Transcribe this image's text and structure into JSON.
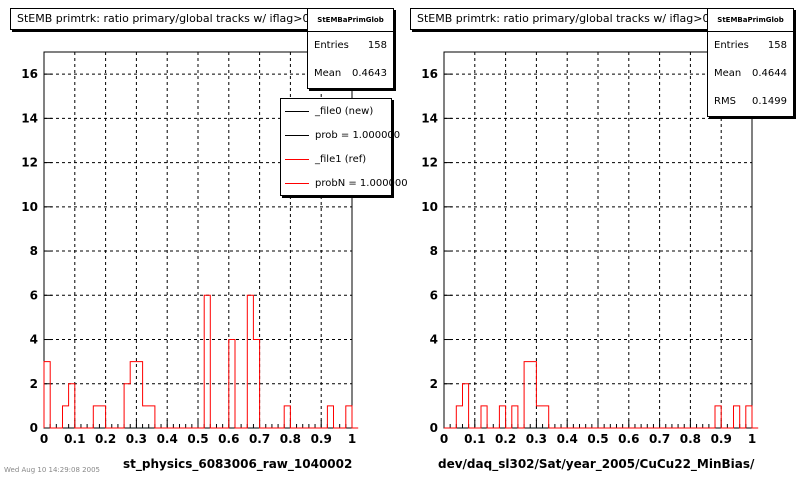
{
  "panels": [
    {
      "title": "StEMB primtrk: ratio primary/global tracks w/ iflag>0",
      "xlabel": "st_physics_6083006_raw_1040002",
      "stats": {
        "name": "StEMBaPrimGlob",
        "rows": [
          {
            "label": "Entries",
            "value": "158"
          },
          {
            "label": "Mean",
            "value": "0.4643"
          }
        ]
      },
      "legend": [
        {
          "label": "_file0 (new)",
          "color": "#000000"
        },
        {
          "label": "prob = 1.000000",
          "color": "#000000"
        },
        {
          "label": "_file1 (ref)",
          "color": "#ff0000"
        },
        {
          "label": "probN = 1.000000",
          "color": "#ff0000"
        }
      ]
    },
    {
      "title": "StEMB primtrk: ratio primary/global tracks w/ iflag>0",
      "xlabel": "dev/daq_sl302/Sat/year_2005/CuCu22_MinBias/",
      "stats": {
        "name": "StEMBaPrimGlob",
        "rows": [
          {
            "label": "Entries",
            "value": "158"
          },
          {
            "label": "Mean",
            "value": "0.4644"
          },
          {
            "label": "RMS",
            "value": "0.1499"
          }
        ]
      },
      "legend": []
    }
  ],
  "footer": "Wed Aug 10 14:29:08 2005",
  "chart_data": [
    {
      "type": "bar",
      "title": "StEMB primtrk: ratio primary/global tracks w/ iflag>0",
      "xlabel": "st_physics_6083006_raw_1040002",
      "ylabel": "",
      "xlim": [
        0,
        1
      ],
      "ylim": [
        0,
        17
      ],
      "xticks": [
        "0",
        "0.1",
        "0.2",
        "0.3",
        "0.4",
        "0.5",
        "0.6",
        "0.7",
        "0.8",
        "0.9",
        "1"
      ],
      "yticks": [
        "0",
        "2",
        "4",
        "6",
        "8",
        "10",
        "12",
        "14",
        "16"
      ],
      "grid": true,
      "bin_width": 0.02,
      "bin_start": 0,
      "series": [
        {
          "name": "_file1 (ref)",
          "color": "#ff0000",
          "values": [
            3,
            0,
            0,
            1,
            2,
            0,
            0,
            0,
            1,
            1,
            0,
            0,
            0,
            2,
            3,
            3,
            1,
            1,
            0,
            0,
            0,
            0,
            0,
            0,
            0,
            0,
            6,
            0,
            0,
            0,
            4,
            0,
            0,
            6,
            4,
            0,
            0,
            0,
            0,
            1,
            0,
            0,
            0,
            0,
            0,
            0,
            1,
            0,
            0,
            1,
            0
          ]
        }
      ]
    },
    {
      "type": "bar",
      "title": "StEMB primtrk: ratio primary/global tracks w/ iflag>0",
      "xlabel": "dev/daq_sl302/Sat/year_2005/CuCu22_MinBias/",
      "ylabel": "",
      "xlim": [
        0,
        1
      ],
      "ylim": [
        0,
        17
      ],
      "xticks": [
        "0",
        "0.1",
        "0.2",
        "0.3",
        "0.4",
        "0.5",
        "0.6",
        "0.7",
        "0.8",
        "0.9",
        "1"
      ],
      "yticks": [
        "0",
        "2",
        "4",
        "6",
        "8",
        "10",
        "12",
        "14",
        "16"
      ],
      "grid": true,
      "bin_width": 0.02,
      "bin_start": 0,
      "series": [
        {
          "name": "",
          "color": "#ff0000",
          "values": [
            0,
            0,
            1,
            2,
            0,
            0,
            1,
            0,
            0,
            1,
            0,
            1,
            0,
            3,
            3,
            1,
            1,
            0,
            0,
            0,
            0,
            0,
            0,
            0,
            0,
            0,
            0,
            0,
            0,
            0,
            0,
            0,
            0,
            0,
            0,
            0,
            0,
            0,
            0,
            0,
            0,
            0,
            0,
            0,
            1,
            0,
            0,
            1,
            0,
            1,
            0
          ]
        }
      ]
    }
  ]
}
